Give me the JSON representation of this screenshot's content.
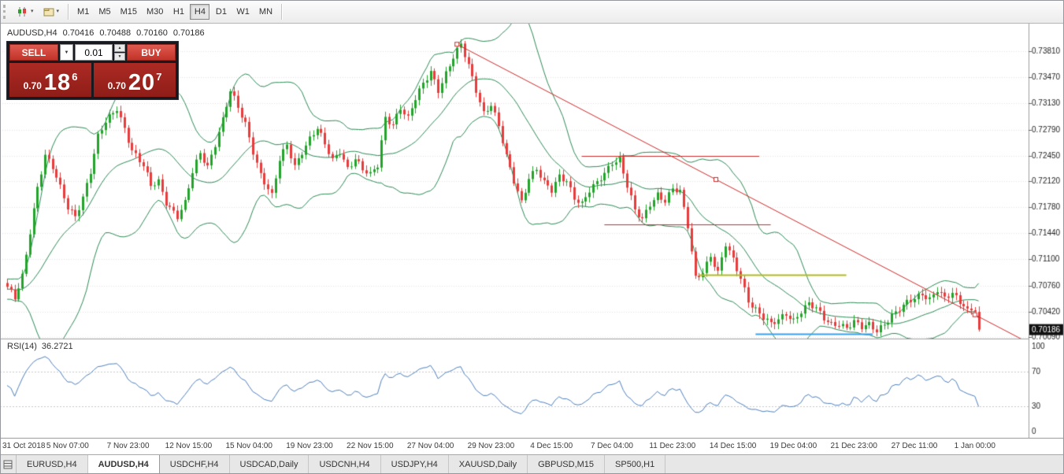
{
  "icons": {
    "chevron_down": "▼",
    "chevron_up": "▲",
    "toolbar_dropdown": "▾"
  },
  "toolbar": {
    "icon_buttons": [
      "new-chart",
      "profiles"
    ],
    "timeframes": [
      "M1",
      "M5",
      "M15",
      "M30",
      "H1",
      "H4",
      "D1",
      "W1",
      "MN"
    ],
    "active_timeframe": "H4"
  },
  "chart_header": {
    "symbol_timeframe": "AUDUSD,H4",
    "open": "0.70416",
    "high": "0.70488",
    "low": "0.70160",
    "close": "0.70186"
  },
  "trade_panel": {
    "sell_label": "SELL",
    "buy_label": "BUY",
    "volume": "0.01",
    "sell_price_small": "0.70",
    "sell_price_big": "18",
    "sell_price_sup": "6",
    "buy_price_small": "0.70",
    "buy_price_big": "20",
    "buy_price_sup": "7"
  },
  "rsi_panel": {
    "label": "RSI(14)",
    "value": "36.2721"
  },
  "tabs": {
    "items": [
      "EURUSD,H4",
      "AUDUSD,H4",
      "USDCHF,H4",
      "USDCAD,Daily",
      "USDCNH,H4",
      "USDJPY,H4",
      "XAUUSD,Daily",
      "GBPUSD,M15",
      "SP500,H1"
    ],
    "active": "AUDUSD,H4"
  },
  "chart_data": {
    "type": "candlestick",
    "symbol": "AUDUSD",
    "timeframe": "H4",
    "last_candle": {
      "open": 0.70416,
      "high": 0.70488,
      "low": 0.7016,
      "close": 0.70186
    },
    "current_bid": 0.70186,
    "current_bid_label": "0.70186",
    "price_axis_ticks": [
      "0.73810",
      "0.73470",
      "0.73130",
      "0.72790",
      "0.72450",
      "0.72120",
      "0.71780",
      "0.71440",
      "0.71100",
      "0.70760",
      "0.70420",
      "0.70090"
    ],
    "x_axis_labels": [
      "31 Oct 2018",
      "5 Nov 07:00",
      "7 Nov 23:00",
      "12 Nov 15:00",
      "15 Nov 04:00",
      "19 Nov 23:00",
      "22 Nov 15:00",
      "27 Nov 04:00",
      "29 Nov 23:00",
      "4 Dec 15:00",
      "7 Dec 04:00",
      "11 Dec 23:00",
      "14 Dec 15:00",
      "19 Dec 04:00",
      "21 Dec 23:00",
      "27 Dec 11:00",
      "1 Jan 00:00"
    ],
    "bars_per_label": 16,
    "candle_count": 258,
    "close_anchors": [
      [
        0,
        0.7072
      ],
      [
        2,
        0.7058
      ],
      [
        4,
        0.7088
      ],
      [
        6,
        0.7148
      ],
      [
        8,
        0.7205
      ],
      [
        10,
        0.7245
      ],
      [
        12,
        0.7228
      ],
      [
        14,
        0.7202
      ],
      [
        16,
        0.7178
      ],
      [
        18,
        0.7168
      ],
      [
        20,
        0.7192
      ],
      [
        22,
        0.7224
      ],
      [
        24,
        0.7268
      ],
      [
        26,
        0.7288
      ],
      [
        29,
        0.7308
      ],
      [
        31,
        0.7282
      ],
      [
        33,
        0.7252
      ],
      [
        36,
        0.723
      ],
      [
        38,
        0.7205
      ],
      [
        40,
        0.7212
      ],
      [
        42,
        0.7186
      ],
      [
        45,
        0.7166
      ],
      [
        47,
        0.7182
      ],
      [
        49,
        0.7222
      ],
      [
        51,
        0.7248
      ],
      [
        53,
        0.7232
      ],
      [
        55,
        0.7262
      ],
      [
        57,
        0.7292
      ],
      [
        59,
        0.7328
      ],
      [
        61,
        0.7306
      ],
      [
        63,
        0.7286
      ],
      [
        65,
        0.7252
      ],
      [
        67,
        0.7222
      ],
      [
        70,
        0.7192
      ],
      [
        72,
        0.7238
      ],
      [
        74,
        0.7258
      ],
      [
        76,
        0.7232
      ],
      [
        78,
        0.7252
      ],
      [
        80,
        0.7268
      ],
      [
        82,
        0.728
      ],
      [
        84,
        0.7258
      ],
      [
        86,
        0.7238
      ],
      [
        88,
        0.7252
      ],
      [
        90,
        0.723
      ],
      [
        92,
        0.7242
      ],
      [
        94,
        0.7226
      ],
      [
        96,
        0.7218
      ],
      [
        98,
        0.7232
      ],
      [
        100,
        0.7295
      ],
      [
        102,
        0.7288
      ],
      [
        104,
        0.7308
      ],
      [
        106,
        0.7292
      ],
      [
        108,
        0.7318
      ],
      [
        110,
        0.7338
      ],
      [
        112,
        0.7356
      ],
      [
        114,
        0.7332
      ],
      [
        116,
        0.7352
      ],
      [
        118,
        0.7372
      ],
      [
        120,
        0.7388
      ],
      [
        122,
        0.7362
      ],
      [
        124,
        0.7332
      ],
      [
        126,
        0.7302
      ],
      [
        128,
        0.7312
      ],
      [
        130,
        0.7282
      ],
      [
        132,
        0.7242
      ],
      [
        134,
        0.7212
      ],
      [
        136,
        0.7186
      ],
      [
        138,
        0.7218
      ],
      [
        140,
        0.7228
      ],
      [
        142,
        0.7208
      ],
      [
        144,
        0.7198
      ],
      [
        146,
        0.7218
      ],
      [
        148,
        0.7214
      ],
      [
        150,
        0.7192
      ],
      [
        152,
        0.7182
      ],
      [
        154,
        0.7198
      ],
      [
        156,
        0.7208
      ],
      [
        158,
        0.7222
      ],
      [
        160,
        0.7238
      ],
      [
        162,
        0.7242
      ],
      [
        164,
        0.7206
      ],
      [
        166,
        0.7172
      ],
      [
        168,
        0.716
      ],
      [
        170,
        0.7182
      ],
      [
        172,
        0.7196
      ],
      [
        174,
        0.7188
      ],
      [
        176,
        0.7202
      ],
      [
        178,
        0.7196
      ],
      [
        180,
        0.7152
      ],
      [
        182,
        0.7086
      ],
      [
        184,
        0.7096
      ],
      [
        186,
        0.7116
      ],
      [
        188,
        0.7092
      ],
      [
        190,
        0.7128
      ],
      [
        192,
        0.7108
      ],
      [
        194,
        0.7086
      ],
      [
        196,
        0.7058
      ],
      [
        198,
        0.7046
      ],
      [
        200,
        0.7034
      ],
      [
        202,
        0.7024
      ],
      [
        204,
        0.703
      ],
      [
        206,
        0.704
      ],
      [
        208,
        0.7032
      ],
      [
        210,
        0.7044
      ],
      [
        212,
        0.7052
      ],
      [
        214,
        0.7044
      ],
      [
        216,
        0.7032
      ],
      [
        218,
        0.7026
      ],
      [
        220,
        0.7028
      ],
      [
        222,
        0.7022
      ],
      [
        224,
        0.7028
      ],
      [
        226,
        0.702
      ],
      [
        228,
        0.7024
      ],
      [
        230,
        0.7018
      ],
      [
        232,
        0.7028
      ],
      [
        234,
        0.7038
      ],
      [
        236,
        0.7044
      ],
      [
        238,
        0.7052
      ],
      [
        240,
        0.7058
      ],
      [
        242,
        0.7066
      ],
      [
        244,
        0.706
      ],
      [
        246,
        0.7072
      ],
      [
        248,
        0.7058
      ],
      [
        250,
        0.7064
      ],
      [
        252,
        0.7052
      ],
      [
        254,
        0.7046
      ],
      [
        256,
        0.70416
      ],
      [
        257,
        0.70186
      ]
    ],
    "indicators": {
      "bollinger": {
        "period": 20,
        "deviations": 2,
        "color": "#2e8b57"
      },
      "rsi": {
        "period": 14,
        "value": 36.2721,
        "levels": [
          100,
          70,
          30,
          0
        ],
        "color": "#4f81bd"
      }
    },
    "objects": {
      "trendline": {
        "from_index": 119,
        "from_price": 0.739,
        "to_index": 256,
        "to_price": 0.7038,
        "ray": true,
        "selected": true,
        "color": "#cc2a2a"
      },
      "hlines": [
        {
          "price": 0.7245,
          "from_index": 152,
          "to_index": 199,
          "color": "#cc2a2a",
          "width": 1
        },
        {
          "price": 0.7156,
          "from_index": 158,
          "to_index": 202,
          "color": "#cc2a2a",
          "width": 1
        },
        {
          "price": 0.709,
          "from_index": 183,
          "to_index": 222,
          "color": "#b2bb1e",
          "width": 2
        },
        {
          "price": 0.7013,
          "from_index": 198,
          "to_index": 229,
          "color": "#3aa0e8",
          "width": 2
        }
      ]
    },
    "colors": {
      "up": "#24a32b",
      "down": "#e63c3c",
      "grid": "#e4e4e4",
      "axis_text": "#1f1f1f",
      "badge_bg": "#111111",
      "badge_text": "#ffffff",
      "pane_border": "#a0a0a0"
    }
  }
}
